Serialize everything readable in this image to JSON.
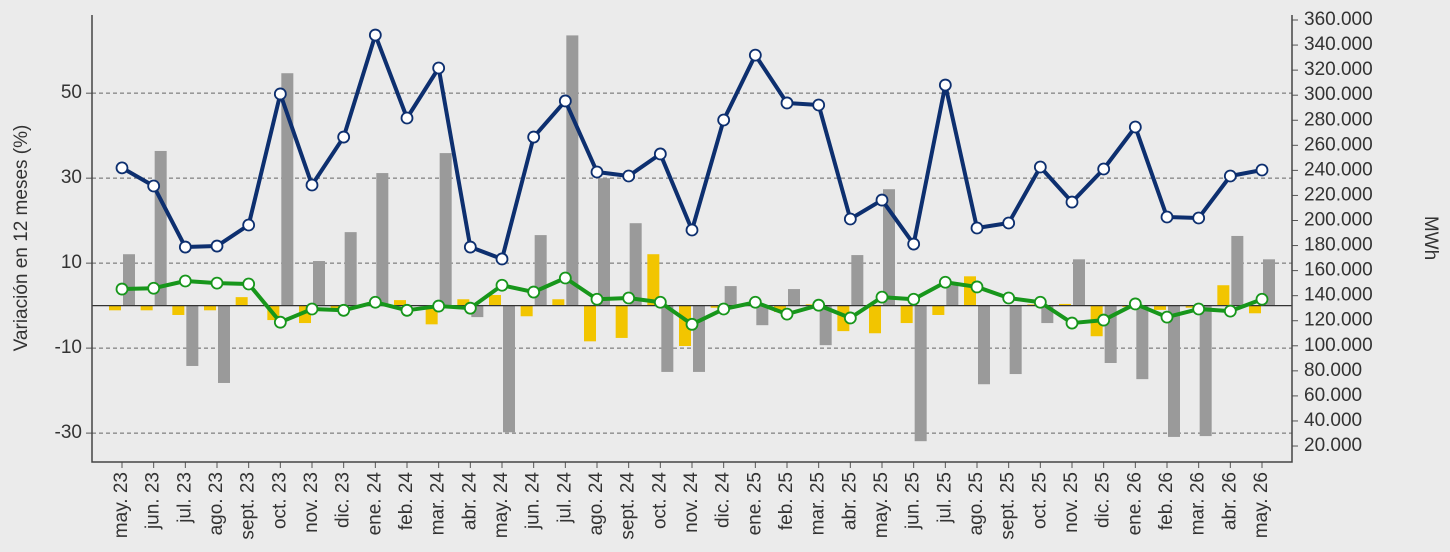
{
  "chart_data": {
    "type": "bar",
    "ylabel": "Variación en 12 meses (%)",
    "y2label": "MWh",
    "categories": [
      "may. 23",
      "jun. 23",
      "jul. 23",
      "ago. 23",
      "sept. 23",
      "oct. 23",
      "nov. 23",
      "dic. 23",
      "ene. 24",
      "feb. 24",
      "mar. 24",
      "abr. 24",
      "may. 24",
      "jun. 24",
      "jul. 24",
      "ago. 24",
      "sept. 24",
      "oct. 24",
      "nov. 24",
      "dic. 24",
      "ene. 25",
      "feb. 25",
      "mar. 25",
      "abr. 25",
      "may. 25",
      "jun. 25",
      "jul. 25",
      "ago. 25",
      "sept. 25",
      "oct. 25",
      "nov. 25",
      "dic. 25",
      "ene. 26",
      "feb. 26",
      "mar. 26",
      "abr. 26",
      "may. 26"
    ],
    "series": [
      {
        "type": "bar",
        "color": "#f2c500",
        "values": [
          -1.1,
          -1.1,
          -2.2,
          -1.1,
          2.0,
          -3.4,
          -4.1,
          -0.8,
          0.5,
          1.3,
          -4.4,
          1.5,
          2.5,
          -2.5,
          1.5,
          -8.4,
          -7.6,
          12.1,
          -9.5,
          -0.5,
          0.5,
          -1.5,
          0.3,
          -6.0,
          -6.5,
          -4.1,
          -2.2,
          6.9,
          0,
          0.3,
          0.4,
          -7.2,
          -0.3,
          -1,
          -0.5,
          4.8,
          -1.8
        ]
      },
      {
        "type": "bar",
        "color": "#9a9a9a",
        "values": [
          12.1,
          36.4,
          -14.2,
          -18.2,
          0,
          54.7,
          10.5,
          17.3,
          31.2,
          0,
          35.9,
          -2.7,
          -29.8,
          16.6,
          63.6,
          30,
          19.4,
          -15.6,
          -15.6,
          4.6,
          -4.6,
          3.9,
          -9.3,
          11.9,
          27.4,
          -31.9,
          4.8,
          -18.5,
          -16.1,
          -4.1,
          10.9,
          -13.5,
          -17.3,
          -30.9,
          -30.7,
          16.4,
          10.9
        ]
      },
      {
        "type": "line",
        "axis": "y2",
        "color": "#0d2f6f",
        "values": [
          242000,
          227500,
          178800,
          179600,
          196400,
          301000,
          228300,
          266600,
          348000,
          281800,
          321700,
          178800,
          169300,
          266600,
          295400,
          238700,
          235500,
          253100,
          192400,
          280200,
          332000,
          293800,
          292200,
          201200,
          216300,
          181200,
          308100,
          194000,
          198000,
          242700,
          214700,
          241100,
          274600,
          202800,
          202000,
          235500,
          240300
        ]
      },
      {
        "type": "line",
        "color": "#17961b",
        "values": [
          3.9,
          4.1,
          5.8,
          5.3,
          5.1,
          -3.9,
          -0.8,
          -1.1,
          0.8,
          -1.1,
          -0.1,
          -0.6,
          4.8,
          3.2,
          6.5,
          1.5,
          1.8,
          0.8,
          -4.4,
          -0.8,
          0.8,
          -2.0,
          0.1,
          -2.9,
          2.0,
          1.5,
          5.5,
          4.4,
          1.8,
          0.8,
          -4.1,
          -3.4,
          0.4,
          -2.7,
          -0.8,
          -1.3,
          1.5
        ]
      }
    ],
    "ylim": [
      -36.8,
      68.4
    ],
    "yticks": [
      -30,
      -10,
      10,
      30,
      50
    ],
    "y2lim": [
      7250,
      364000
    ],
    "y2ticks": [
      {
        "value": 20000,
        "label": "20.000"
      },
      {
        "value": 40000,
        "label": "40.000"
      },
      {
        "value": 60000,
        "label": "60.000"
      },
      {
        "value": 80000,
        "label": "80.000"
      },
      {
        "value": 100000,
        "label": "100.000"
      },
      {
        "value": 120000,
        "label": "120.000"
      },
      {
        "value": 140000,
        "label": "140.000"
      },
      {
        "value": 160000,
        "label": "160.000"
      },
      {
        "value": 180000,
        "label": "180.000"
      },
      {
        "value": 200000,
        "label": "200.000"
      },
      {
        "value": 220000,
        "label": "220.000"
      },
      {
        "value": 240000,
        "label": "240.000"
      },
      {
        "value": 260000,
        "label": "260.000"
      },
      {
        "value": 280000,
        "label": "280.000"
      },
      {
        "value": 300000,
        "label": "300.000"
      },
      {
        "value": 320000,
        "label": "320.000"
      },
      {
        "value": 340000,
        "label": "340.000"
      },
      {
        "value": 360000,
        "label": "360.000"
      }
    ],
    "grid": true
  }
}
